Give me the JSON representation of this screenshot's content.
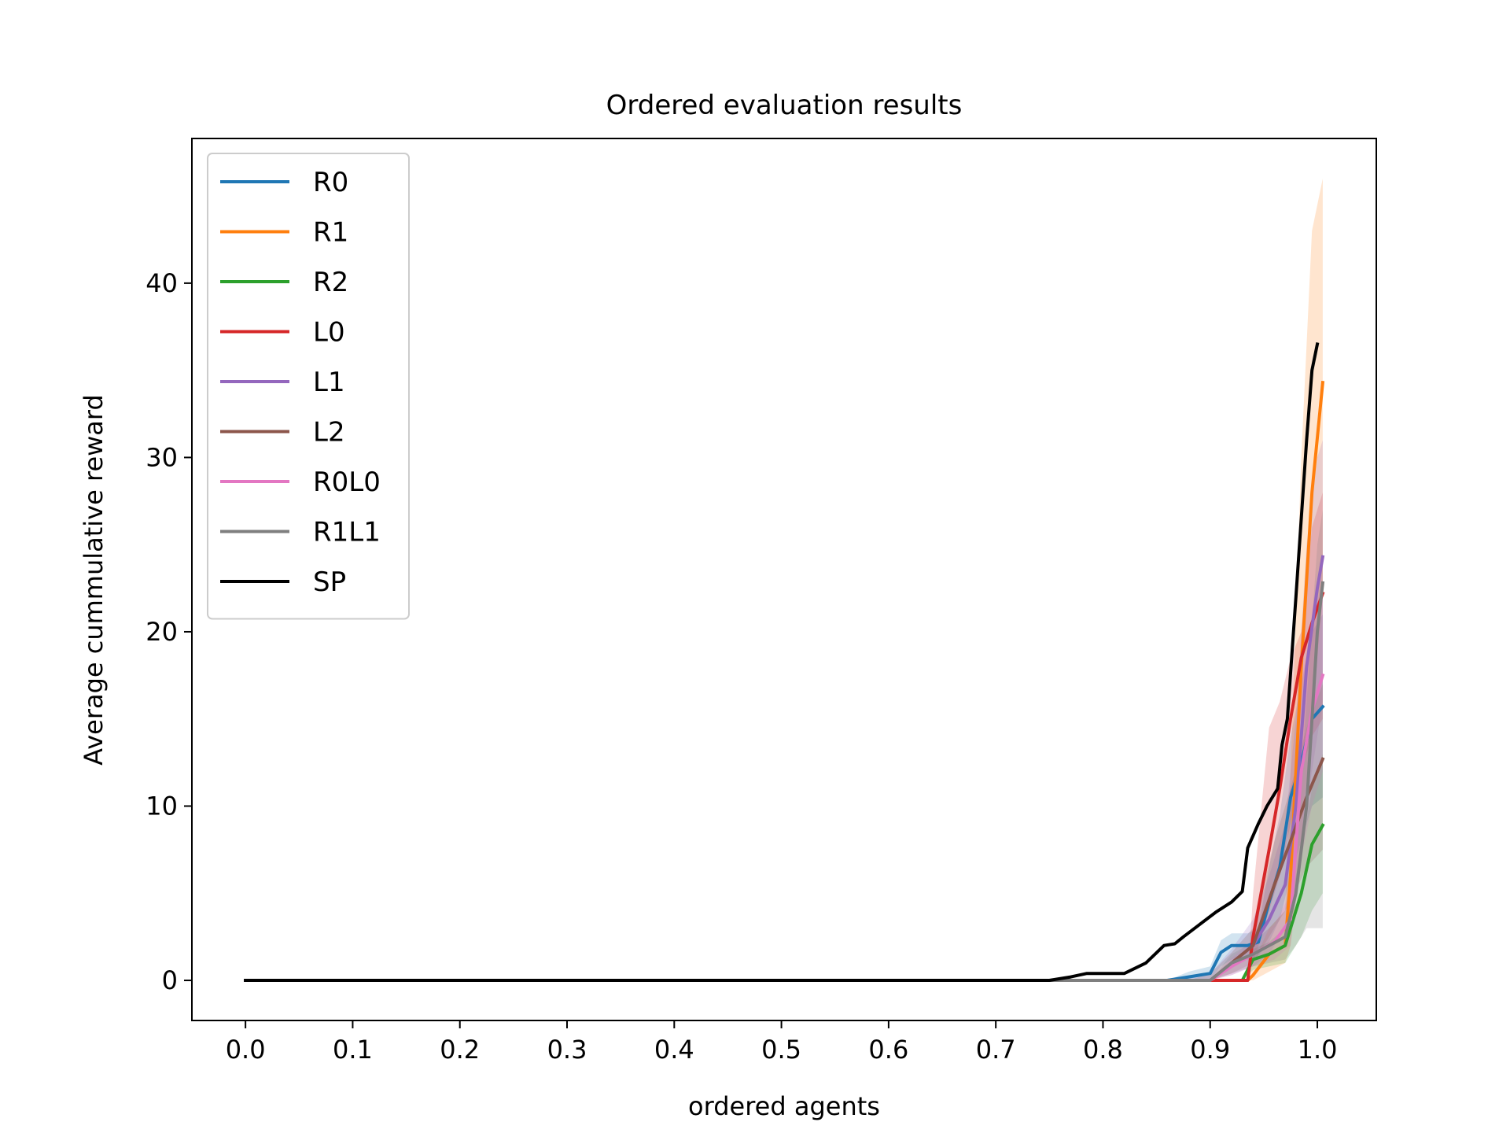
{
  "chart_data": {
    "type": "line",
    "title": "Ordered evaluation results",
    "xlabel": "ordered agents",
    "ylabel": "Average cummulative reward",
    "xlim": [
      -0.05,
      1.055
    ],
    "ylim": [
      -2.3,
      48.3
    ],
    "xticks": [
      "0.0",
      "0.1",
      "0.2",
      "0.3",
      "0.4",
      "0.5",
      "0.6",
      "0.7",
      "0.8",
      "0.9",
      "1.0"
    ],
    "yticks": [
      "0",
      "10",
      "20",
      "30",
      "40"
    ],
    "grid": false,
    "legend_position": "upper-left",
    "series": [
      {
        "name": "R0",
        "color": "#1f77b4",
        "points": [
          [
            0,
            0
          ],
          [
            0.86,
            0
          ],
          [
            0.88,
            0.2
          ],
          [
            0.9,
            0.4
          ],
          [
            0.91,
            1.6
          ],
          [
            0.92,
            2.0
          ],
          [
            0.935,
            2.0
          ],
          [
            0.945,
            2.2
          ],
          [
            0.955,
            4.5
          ],
          [
            0.965,
            6.5
          ],
          [
            0.975,
            10.5
          ],
          [
            0.985,
            12.5
          ],
          [
            0.995,
            15.0
          ],
          [
            1.005,
            15.7
          ]
        ],
        "band_lower": [
          0,
          0,
          0,
          0,
          0.8,
          1.2,
          1.2,
          1.4,
          2.2,
          3.5,
          6.0,
          8.0,
          10.0,
          10.5
        ],
        "band_upper": [
          0,
          0,
          0.5,
          0.8,
          2.3,
          2.7,
          2.7,
          3.0,
          6.5,
          9.5,
          14.0,
          17.0,
          20.0,
          21.0
        ]
      },
      {
        "name": "R1",
        "color": "#ff7f0e",
        "points": [
          [
            0,
            0
          ],
          [
            0.935,
            0
          ],
          [
            0.94,
            0.3
          ],
          [
            0.955,
            1.5
          ],
          [
            0.97,
            2.0
          ],
          [
            0.975,
            6.0
          ],
          [
            0.985,
            18.0
          ],
          [
            0.995,
            28.0
          ],
          [
            1.005,
            34.3
          ]
        ],
        "band_lower": [
          0,
          0,
          0,
          0.5,
          1.0,
          2.0,
          8.0,
          15.0,
          22.0
        ],
        "band_upper": [
          0,
          0,
          1.0,
          3.0,
          4.0,
          12.0,
          30.0,
          43.0,
          46.0
        ]
      },
      {
        "name": "R2",
        "color": "#2ca02c",
        "points": [
          [
            0,
            0
          ],
          [
            0.93,
            0
          ],
          [
            0.94,
            1.2
          ],
          [
            0.955,
            1.5
          ],
          [
            0.97,
            2.0
          ],
          [
            0.985,
            5.0
          ],
          [
            0.995,
            7.8
          ],
          [
            1.005,
            8.9
          ]
        ],
        "band_lower": [
          0,
          0,
          0.6,
          0.8,
          1.0,
          2.5,
          4.0,
          5.0
        ],
        "band_upper": [
          0,
          0,
          1.8,
          2.2,
          3.0,
          7.5,
          11.0,
          13.0
        ]
      },
      {
        "name": "L0",
        "color": "#d62728",
        "points": [
          [
            0,
            0
          ],
          [
            0.935,
            0
          ],
          [
            0.94,
            2.5
          ],
          [
            0.955,
            7.5
          ],
          [
            0.965,
            11.0
          ],
          [
            0.975,
            15.0
          ],
          [
            0.985,
            18.5
          ],
          [
            0.995,
            20.5
          ],
          [
            1.005,
            22.2
          ]
        ],
        "band_lower": [
          0,
          0,
          1.0,
          4.0,
          6.0,
          9.0,
          12.0,
          14.0,
          15.0
        ],
        "band_upper": [
          0,
          0,
          5.0,
          14.5,
          16.0,
          18.5,
          20.0,
          26.0,
          28.0
        ]
      },
      {
        "name": "L1",
        "color": "#9467bd",
        "points": [
          [
            0,
            0
          ],
          [
            0.87,
            0
          ],
          [
            0.9,
            0
          ],
          [
            0.92,
            1.0
          ],
          [
            0.94,
            2.0
          ],
          [
            0.955,
            3.5
          ],
          [
            0.97,
            5.5
          ],
          [
            0.98,
            10.0
          ],
          [
            0.99,
            18.0
          ],
          [
            1.0,
            22.5
          ],
          [
            1.005,
            24.3
          ]
        ],
        "band_lower": [
          0,
          0,
          0,
          0.3,
          0.8,
          1.5,
          3.0,
          5.0,
          10.0,
          14.0,
          16.0
        ],
        "band_upper": [
          0,
          0,
          0.4,
          1.8,
          3.5,
          6.0,
          9.0,
          15.0,
          25.0,
          30.0,
          31.0
        ]
      },
      {
        "name": "L2",
        "color": "#8c564b",
        "points": [
          [
            0,
            0
          ],
          [
            0.88,
            0
          ],
          [
            0.9,
            0
          ],
          [
            0.92,
            1.0
          ],
          [
            0.94,
            2.0
          ],
          [
            0.96,
            5.5
          ],
          [
            0.975,
            8.0
          ],
          [
            0.99,
            10.5
          ],
          [
            1.005,
            12.7
          ]
        ],
        "band_lower": [
          0,
          0,
          0,
          0.4,
          1.0,
          3.0,
          4.5,
          6.5,
          7.5
        ],
        "band_upper": [
          0,
          0,
          0.4,
          1.6,
          3.0,
          8.0,
          11.0,
          14.5,
          17.0
        ]
      },
      {
        "name": "R0L0",
        "color": "#e377c2",
        "points": [
          [
            0,
            0
          ],
          [
            0.9,
            0
          ],
          [
            0.92,
            0.8
          ],
          [
            0.94,
            1.5
          ],
          [
            0.96,
            2.2
          ],
          [
            0.975,
            3.5
          ],
          [
            0.985,
            12.0
          ],
          [
            0.995,
            15.5
          ],
          [
            1.005,
            17.5
          ]
        ],
        "band_lower": [
          0,
          0,
          0.3,
          0.8,
          1.2,
          2.0,
          7.0,
          10.0,
          12.0
        ],
        "band_upper": [
          0,
          0,
          1.3,
          2.3,
          3.2,
          5.0,
          17.0,
          20.5,
          23.0
        ]
      },
      {
        "name": "R1L1",
        "color": "#7f7f7f",
        "points": [
          [
            0,
            0
          ],
          [
            0.9,
            0
          ],
          [
            0.92,
            1.0
          ],
          [
            0.94,
            1.5
          ],
          [
            0.955,
            2.0
          ],
          [
            0.97,
            2.5
          ],
          [
            0.98,
            5.0
          ],
          [
            0.99,
            10.0
          ],
          [
            1.0,
            20.0
          ],
          [
            1.005,
            22.8
          ]
        ],
        "band_lower": [
          0,
          0,
          0.4,
          0.8,
          1.0,
          1.2,
          2.0,
          3.0,
          3.0,
          3.0
        ],
        "band_upper": [
          0,
          0,
          1.5,
          2.2,
          3.0,
          4.0,
          8.0,
          16.0,
          25.0,
          27.0
        ]
      },
      {
        "name": "SP",
        "color": "#000000",
        "points": [
          [
            0,
            0
          ],
          [
            0.75,
            0
          ],
          [
            0.77,
            0.2
          ],
          [
            0.785,
            0.4
          ],
          [
            0.82,
            0.4
          ],
          [
            0.84,
            1.0
          ],
          [
            0.857,
            2.0
          ],
          [
            0.867,
            2.1
          ],
          [
            0.875,
            2.5
          ],
          [
            0.89,
            3.2
          ],
          [
            0.905,
            3.9
          ],
          [
            0.92,
            4.5
          ],
          [
            0.93,
            5.1
          ],
          [
            0.935,
            7.6
          ],
          [
            0.945,
            9.0
          ],
          [
            0.953,
            10.0
          ],
          [
            0.963,
            11.0
          ],
          [
            0.967,
            13.5
          ],
          [
            0.972,
            15.0
          ],
          [
            0.98,
            22.0
          ],
          [
            0.99,
            31.0
          ],
          [
            0.995,
            35.0
          ],
          [
            1.0,
            36.5
          ]
        ],
        "band_lower": null,
        "band_upper": null
      }
    ]
  }
}
